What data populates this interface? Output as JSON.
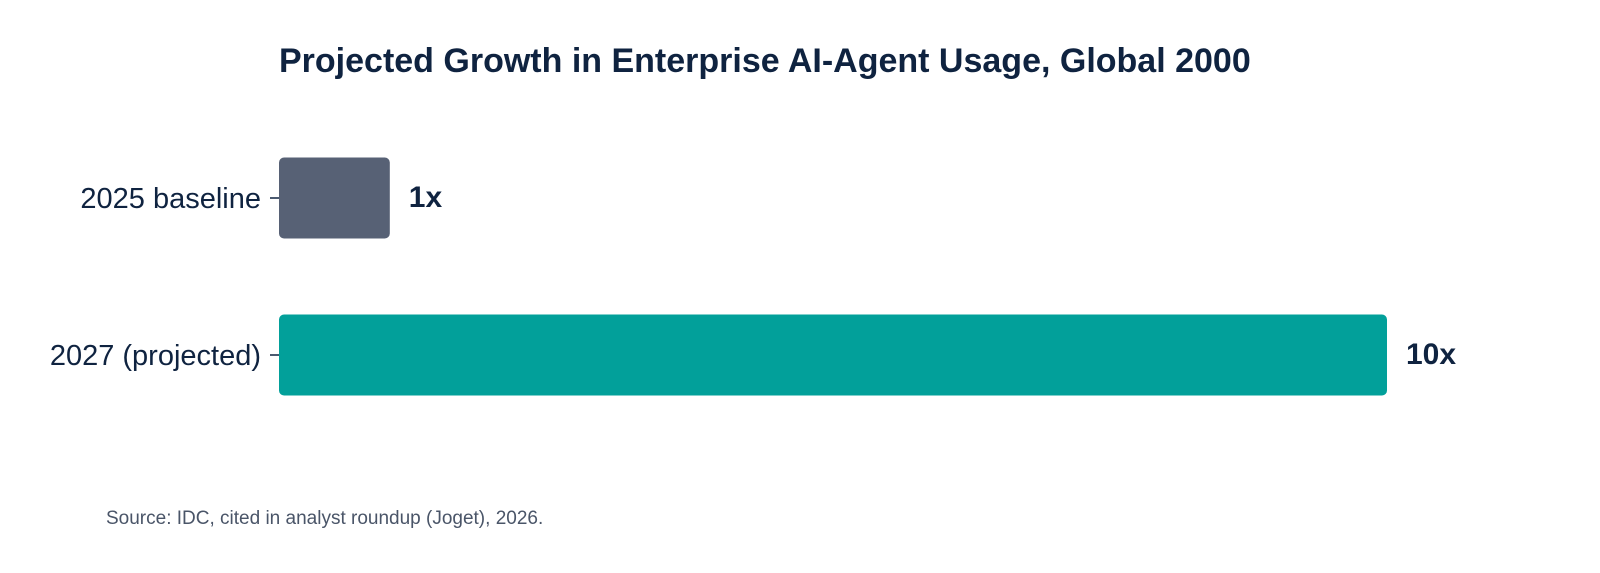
{
  "chart_data": {
    "type": "bar",
    "orientation": "horizontal",
    "title": "Projected Growth in Enterprise AI-Agent Usage, Global 2000",
    "categories": [
      "2025 baseline",
      "2027 (projected)"
    ],
    "values": [
      1,
      10
    ],
    "value_labels": [
      "1x",
      "10x"
    ],
    "bar_colors": [
      "#576175",
      "#02a09a"
    ],
    "xlim": [
      0,
      10
    ],
    "grid": false,
    "legend": "none",
    "xlabel": "",
    "ylabel": ""
  },
  "source": "Source: IDC, cited in analyst roundup (Joget), 2026.",
  "colors": {
    "text": "#0f2340",
    "source_text": "#4a5568",
    "tick": "#0f2340"
  }
}
